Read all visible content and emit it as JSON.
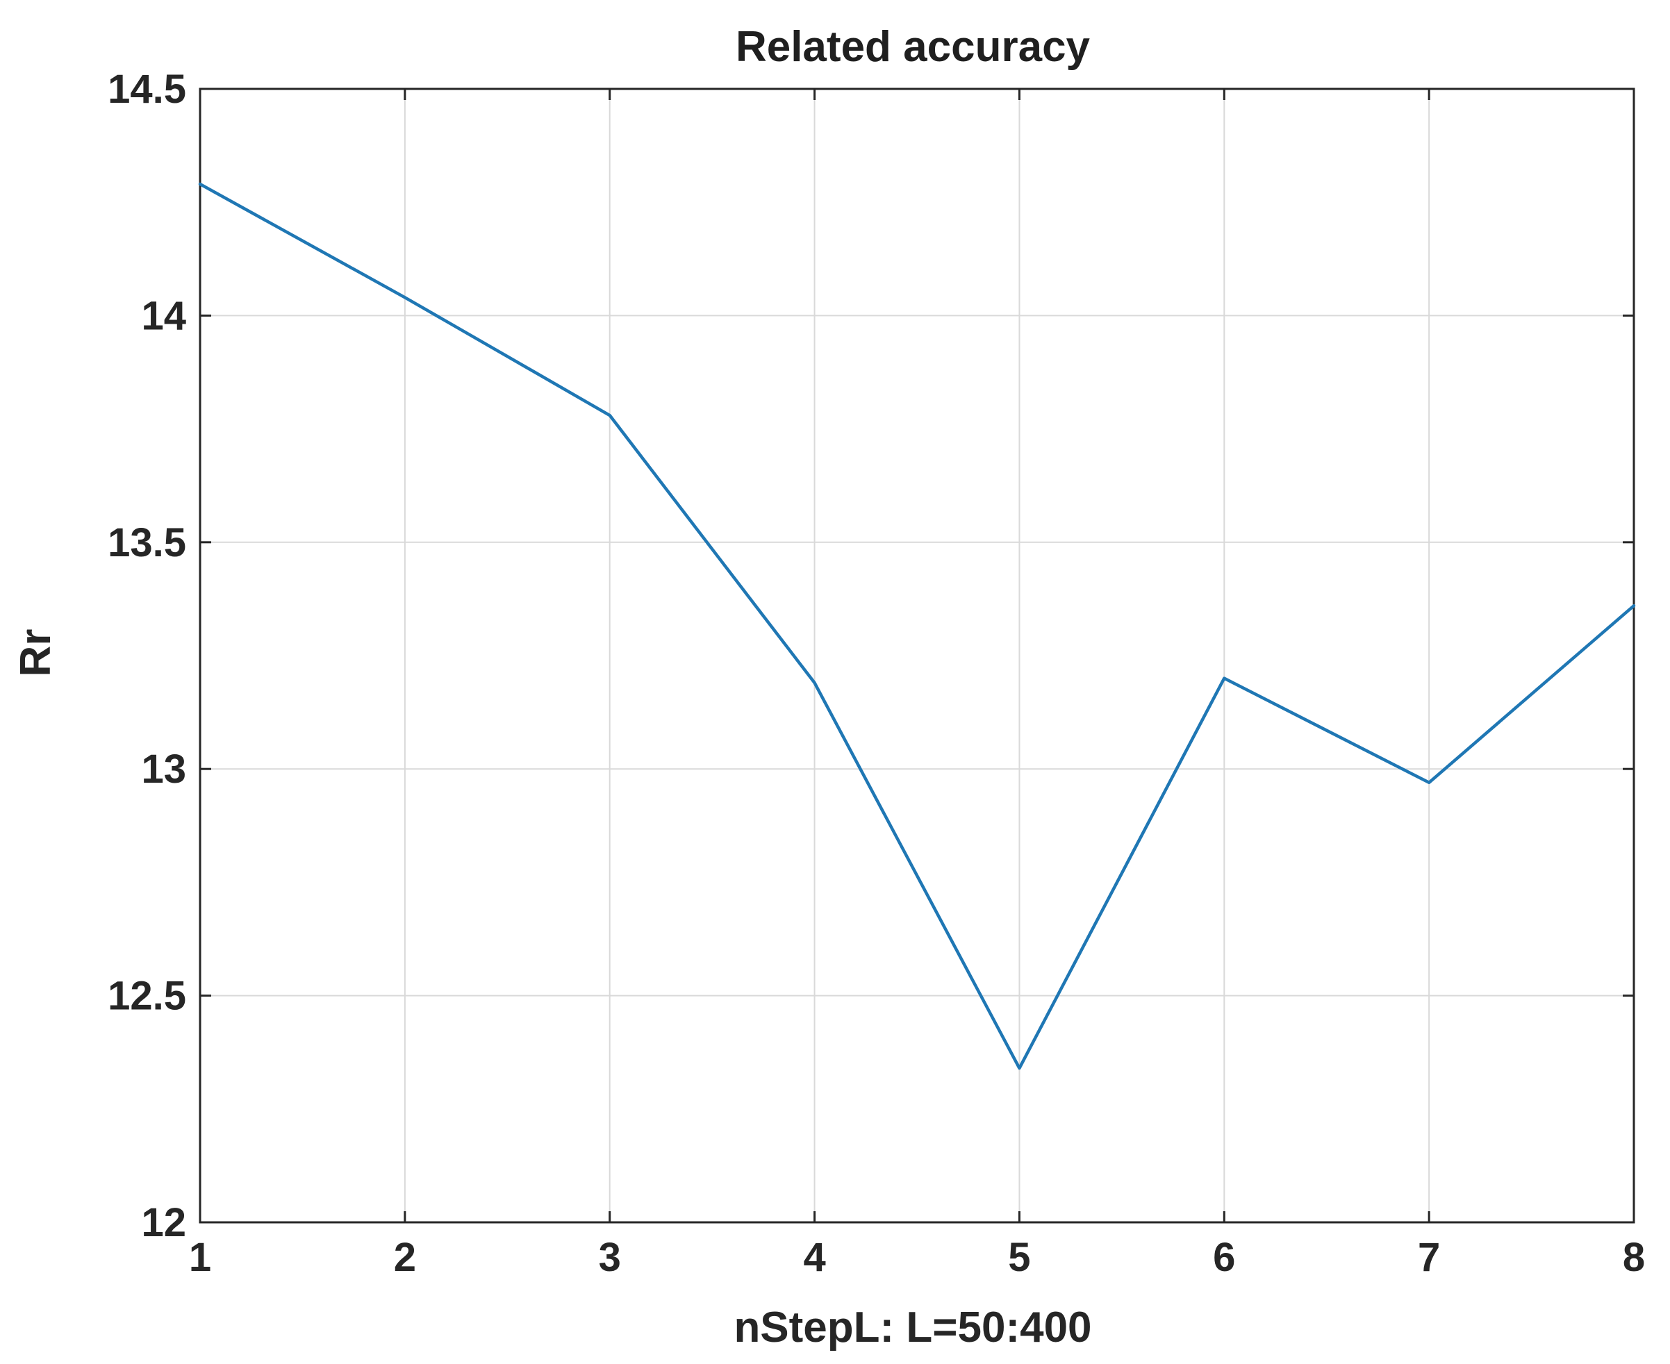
{
  "chart_data": {
    "type": "line",
    "title": "Related accuracy",
    "xlabel": "nStepL: L=50:400",
    "ylabel": "Rr",
    "x": [
      1,
      2,
      3,
      4,
      5,
      6,
      7,
      8
    ],
    "xlim": [
      1,
      8
    ],
    "ylim": [
      12,
      14.5
    ],
    "xticks": [
      1,
      2,
      3,
      4,
      5,
      6,
      7,
      8
    ],
    "xtick_labels": [
      "1",
      "2",
      "3",
      "4",
      "5",
      "6",
      "7",
      "8"
    ],
    "yticks": [
      12,
      12.5,
      13,
      13.5,
      14,
      14.5
    ],
    "ytick_labels": [
      "12",
      "12.5",
      "13",
      "13.5",
      "14",
      "14.5"
    ],
    "grid": true,
    "series": [
      {
        "values": [
          14.29,
          14.04,
          13.78,
          13.19,
          12.34,
          13.2,
          12.97,
          13.36
        ],
        "color": "#1f77b4"
      }
    ]
  }
}
